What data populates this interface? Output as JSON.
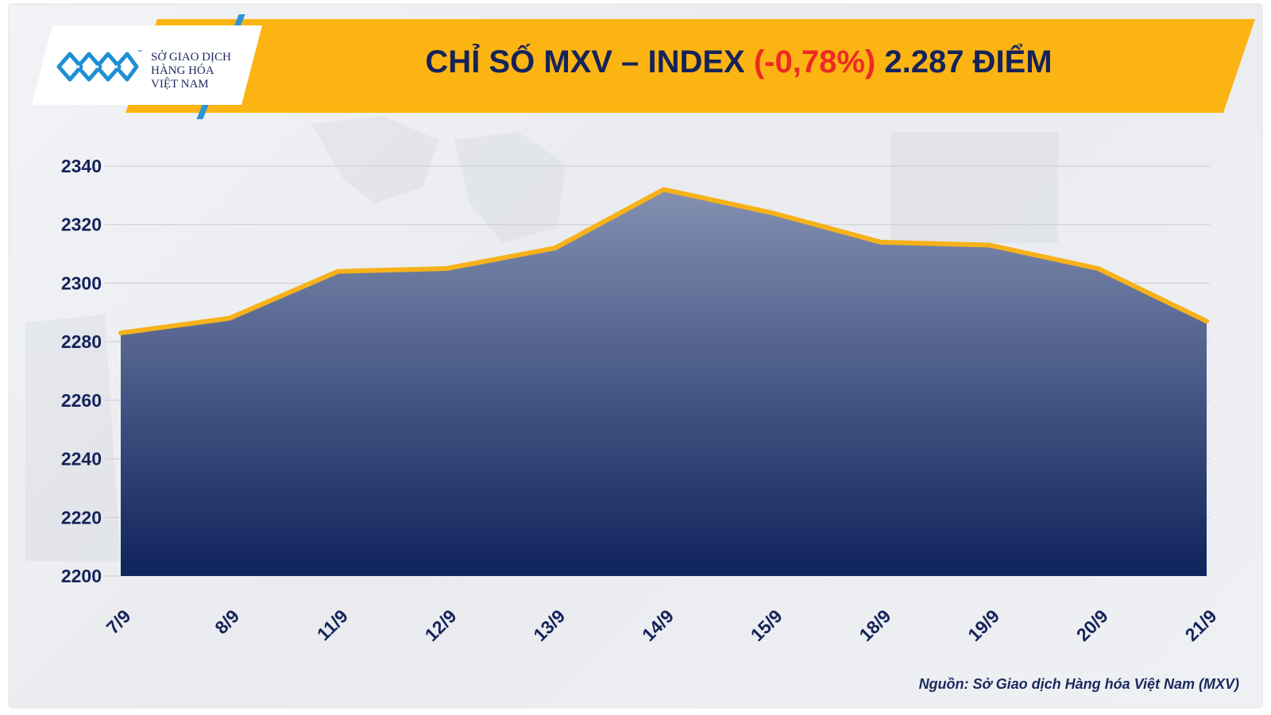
{
  "brand": {
    "name_line1": "SỞ GIAO DỊCH",
    "name_line2": "HÀNG HÓA",
    "name_line3": "VIỆT NAM",
    "tm": "™"
  },
  "title": {
    "main": "CHỈ SỐ MXV – INDEX ",
    "change": "(-0,78%)",
    "value": " 2.287 ĐIỂM"
  },
  "source": "Nguồn: Sở Giao dịch Hàng hóa Việt Nam (MXV)",
  "colors": {
    "banner": "#fbb412",
    "line": "#f7b21a",
    "area_top": "#8390b1",
    "area_bottom": "#0f235c",
    "title_text": "#15235a",
    "change_text": "#ee2a24",
    "axis_text": "#15235a"
  },
  "chart_data": {
    "type": "area",
    "categories": [
      "7/9",
      "8/9",
      "11/9",
      "12/9",
      "13/9",
      "14/9",
      "15/9",
      "18/9",
      "19/9",
      "20/9",
      "21/9"
    ],
    "values": [
      2283,
      2288,
      2304,
      2305,
      2312,
      2332,
      2324,
      2314,
      2313,
      2305,
      2287
    ],
    "ylim": [
      2200,
      2340
    ],
    "yticks": [
      "2200",
      "2220",
      "2240",
      "2260",
      "2280",
      "2300",
      "2320",
      "2340"
    ],
    "grid": true,
    "legend": "none",
    "xlabel": "",
    "ylabel": ""
  }
}
